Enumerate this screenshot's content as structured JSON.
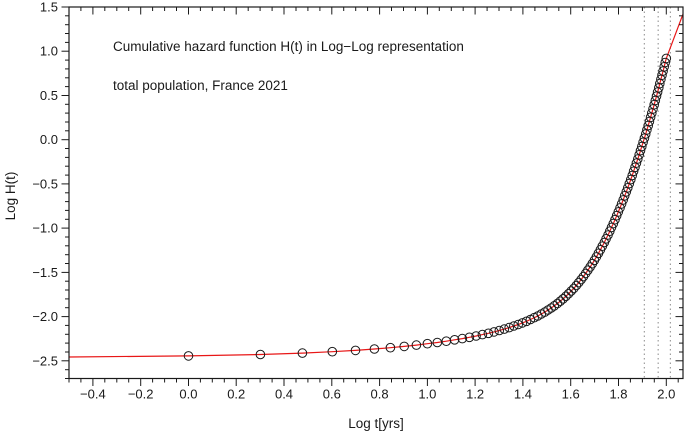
{
  "chart_data": {
    "type": "scatter",
    "title": "Cumulative hazard function H(t) in Log−Log representation",
    "subtitle": "total population, France 2021",
    "xlabel": "Log t[yrs]",
    "ylabel": "Log H(t)",
    "xlim": [
      -0.5,
      2.07
    ],
    "ylim": [
      -2.7,
      1.5
    ],
    "x_major_ticks": [
      -0.4,
      -0.2,
      0.0,
      0.2,
      0.4,
      0.6,
      0.8,
      1.0,
      1.2,
      1.4,
      1.6,
      1.8,
      2.0
    ],
    "x_minor_step": 0.05,
    "y_major_ticks": [
      -2.5,
      -2.0,
      -1.5,
      -1.0,
      -0.5,
      0.0,
      0.5,
      1.0,
      1.5
    ],
    "y_minor_step": 0.1,
    "grid": false,
    "legend": "none",
    "colors": {
      "fit_line": "#e81717",
      "marker_stroke": "#1a1a1a",
      "guide_line": "#8a8a8a",
      "axis": "#1a1a1a",
      "background": "#ffffff"
    },
    "marker": {
      "shape": "open-circle",
      "radius": 4.3
    },
    "dashed_guides_x": [
      1.908,
      1.966,
      2.017
    ],
    "series": [
      {
        "name": "cumulative hazard data points",
        "t_years": [
          1,
          2,
          3,
          4,
          5,
          6,
          7,
          8,
          9,
          10,
          11,
          12,
          13,
          14,
          15,
          16,
          17,
          18,
          19,
          20,
          21,
          22,
          23,
          24,
          25,
          26,
          27,
          28,
          29,
          30,
          31,
          32,
          33,
          34,
          35,
          36,
          37,
          38,
          39,
          40,
          41,
          42,
          43,
          44,
          45,
          46,
          47,
          48,
          49,
          50,
          51,
          52,
          53,
          54,
          55,
          56,
          57,
          58,
          59,
          60,
          61,
          62,
          63,
          64,
          65,
          66,
          67,
          68,
          69,
          70,
          71,
          72,
          73,
          74,
          75,
          76,
          77,
          78,
          79,
          80,
          81,
          82,
          83,
          84,
          85,
          86,
          87,
          88,
          89,
          90,
          91,
          92,
          93,
          94,
          95,
          96,
          97,
          98,
          99,
          100
        ],
        "x": [
          0.0,
          0.301,
          0.4771,
          0.6021,
          0.699,
          0.7782,
          0.8451,
          0.9031,
          0.9542,
          1.0,
          1.0414,
          1.0792,
          1.1139,
          1.1461,
          1.1761,
          1.2041,
          1.2304,
          1.2553,
          1.2788,
          1.301,
          1.3222,
          1.3424,
          1.3617,
          1.3802,
          1.3979,
          1.415,
          1.4314,
          1.4472,
          1.4624,
          1.4771,
          1.4914,
          1.5051,
          1.5185,
          1.5315,
          1.5441,
          1.5563,
          1.5682,
          1.5798,
          1.5911,
          1.6021,
          1.6128,
          1.6232,
          1.6335,
          1.6435,
          1.6532,
          1.6628,
          1.6721,
          1.6812,
          1.6902,
          1.699,
          1.7076,
          1.716,
          1.7243,
          1.7324,
          1.7404,
          1.7482,
          1.7559,
          1.7634,
          1.7709,
          1.7782,
          1.7853,
          1.7924,
          1.7993,
          1.8062,
          1.8129,
          1.8195,
          1.8261,
          1.8325,
          1.8388,
          1.8451,
          1.8513,
          1.8573,
          1.8633,
          1.8692,
          1.8751,
          1.8808,
          1.8865,
          1.8921,
          1.8976,
          1.9031,
          1.9085,
          1.9138,
          1.9191,
          1.9243,
          1.9294,
          1.9345,
          1.9395,
          1.9445,
          1.9494,
          1.9542,
          1.959,
          1.9638,
          1.9685,
          1.9731,
          1.9777,
          1.9823,
          1.9868,
          1.9912,
          1.9956,
          2.0
        ],
        "y": [
          -2.445,
          -2.429,
          -2.413,
          -2.397,
          -2.382,
          -2.367,
          -2.352,
          -2.337,
          -2.322,
          -2.307,
          -2.293,
          -2.278,
          -2.263,
          -2.249,
          -2.234,
          -2.219,
          -2.204,
          -2.189,
          -2.173,
          -2.157,
          -2.141,
          -2.124,
          -2.107,
          -2.089,
          -2.071,
          -2.053,
          -2.033,
          -2.013,
          -1.993,
          -1.971,
          -1.949,
          -1.926,
          -1.903,
          -1.878,
          -1.852,
          -1.826,
          -1.799,
          -1.771,
          -1.741,
          -1.711,
          -1.681,
          -1.649,
          -1.616,
          -1.582,
          -1.548,
          -1.512,
          -1.476,
          -1.439,
          -1.402,
          -1.364,
          -1.325,
          -1.285,
          -1.245,
          -1.204,
          -1.162,
          -1.121,
          -1.078,
          -1.035,
          -0.992,
          -0.949,
          -0.905,
          -0.86,
          -0.816,
          -0.771,
          -0.726,
          -0.681,
          -0.635,
          -0.589,
          -0.544,
          -0.497,
          -0.451,
          -0.405,
          -0.358,
          -0.312,
          -0.265,
          -0.218,
          -0.171,
          -0.124,
          -0.077,
          -0.03,
          0.017,
          0.064,
          0.111,
          0.159,
          0.206,
          0.253,
          0.301,
          0.348,
          0.396,
          0.443,
          0.491,
          0.538,
          0.586,
          0.634,
          0.681,
          0.729,
          0.776,
          0.824,
          0.872,
          0.919
        ]
      }
    ],
    "fit_line": {
      "name": "model fit (red line through points, extended to plot edges)",
      "x_start": -0.5,
      "y_start": -2.457,
      "x_end": 2.07,
      "y_end": 1.42
    }
  }
}
